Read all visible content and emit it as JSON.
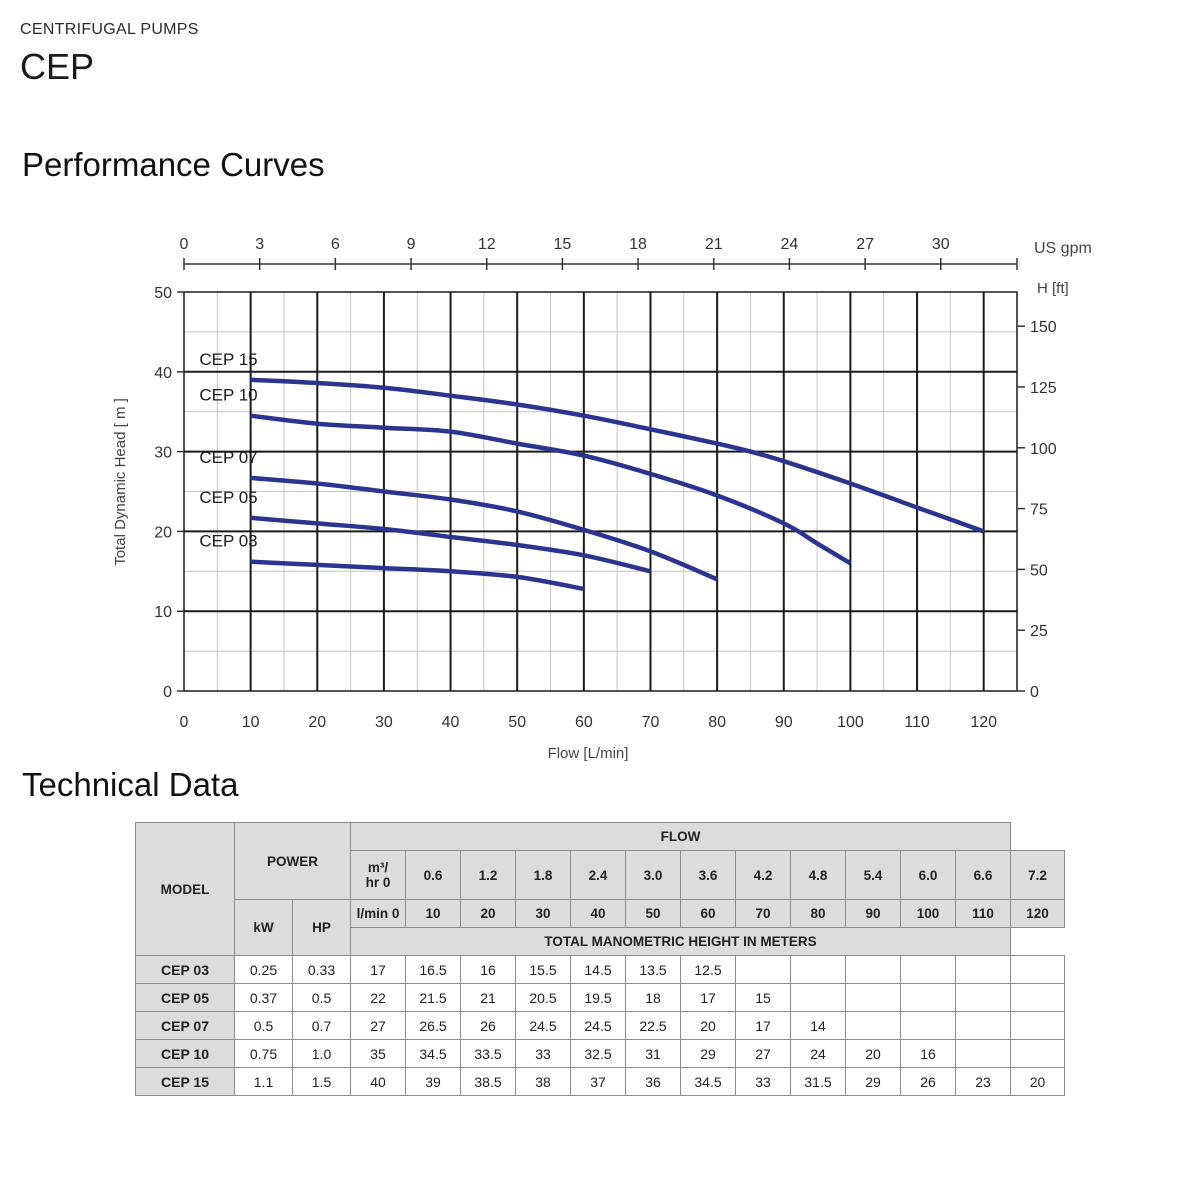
{
  "header": {
    "category": "CENTRIFUGAL PUMPS",
    "model": "CEP"
  },
  "sections": {
    "curves_title": "Performance Curves",
    "tech_title": "Technical Data"
  },
  "chart_data": {
    "type": "line",
    "xlabel": "Flow [L/min]",
    "ylabel": "Total Dynamic Head  [ m ]",
    "xlim": [
      0,
      125
    ],
    "ylim": [
      0,
      50
    ],
    "x_ticks": [
      0,
      10,
      20,
      30,
      40,
      50,
      60,
      70,
      80,
      90,
      100,
      110,
      120
    ],
    "y_ticks": [
      0,
      10,
      20,
      30,
      40,
      50
    ],
    "top_axis": {
      "label": "US gpm",
      "ticks": [
        0,
        3,
        6,
        9,
        12,
        15,
        18,
        21,
        24,
        27,
        30
      ]
    },
    "right_axis": {
      "label": "H  [ft]",
      "ticks": [
        0,
        25,
        50,
        75,
        100,
        125,
        150
      ]
    },
    "grid": true,
    "line_color": "#2b3590",
    "series": [
      {
        "name": "CEP 15",
        "x": [
          10,
          20,
          30,
          40,
          50,
          60,
          70,
          80,
          85,
          90,
          100,
          110,
          120
        ],
        "y": [
          39,
          38.6,
          38,
          37,
          35.9,
          34.5,
          32.8,
          31,
          30,
          28.8,
          26,
          23,
          20
        ]
      },
      {
        "name": "CEP 10",
        "x": [
          10,
          20,
          30,
          40,
          50,
          60,
          70,
          80,
          90,
          95,
          100
        ],
        "y": [
          34.5,
          33.5,
          33,
          32.5,
          31,
          29.5,
          27.2,
          24.5,
          21,
          18.5,
          16
        ]
      },
      {
        "name": "CEP 07",
        "x": [
          10,
          20,
          30,
          40,
          50,
          60,
          70,
          80
        ],
        "y": [
          26.7,
          26,
          25,
          24,
          22.5,
          20.2,
          17.5,
          14
        ]
      },
      {
        "name": "CEP 05",
        "x": [
          10,
          20,
          30,
          40,
          50,
          60,
          70
        ],
        "y": [
          21.7,
          21,
          20.3,
          19.3,
          18.3,
          17,
          15
        ]
      },
      {
        "name": "CEP 03",
        "x": [
          10,
          20,
          30,
          40,
          50,
          60
        ],
        "y": [
          16.2,
          15.8,
          15.4,
          15,
          14.3,
          12.8
        ]
      }
    ]
  },
  "table": {
    "model_header": "MODEL",
    "power_header": "POWER",
    "flow_header": "FLOW",
    "kw_header": "kW",
    "hp_header": "HP",
    "m3_line1": "m³/",
    "m3_line2": "hr  0",
    "lmin_label": "l/min  0",
    "m3_values": [
      "0.6",
      "1.2",
      "1.8",
      "2.4",
      "3.0",
      "3.6",
      "4.2",
      "4.8",
      "5.4",
      "6.0",
      "6.6",
      "7.2"
    ],
    "lmin_values": [
      "10",
      "20",
      "30",
      "40",
      "50",
      "60",
      "70",
      "80",
      "90",
      "100",
      "110",
      "120"
    ],
    "tmh_header": "TOTAL MANOMETRIC HEIGHT IN METERS",
    "rows": [
      {
        "model": "CEP 03",
        "kw": "0.25",
        "hp": "0.33",
        "values": [
          "17",
          "16.5",
          "16",
          "15.5",
          "14.5",
          "13.5",
          "12.5",
          "",
          "",
          "",
          "",
          "",
          ""
        ]
      },
      {
        "model": "CEP 05",
        "kw": "0.37",
        "hp": "0.5",
        "values": [
          "22",
          "21.5",
          "21",
          "20.5",
          "19.5",
          "18",
          "17",
          "15",
          "",
          "",
          "",
          "",
          ""
        ]
      },
      {
        "model": "CEP 07",
        "kw": "0.5",
        "hp": "0.7",
        "values": [
          "27",
          "26.5",
          "26",
          "24.5",
          "24.5",
          "22.5",
          "20",
          "17",
          "14",
          "",
          "",
          "",
          ""
        ]
      },
      {
        "model": "CEP 10",
        "kw": "0.75",
        "hp": "1.0",
        "values": [
          "35",
          "34.5",
          "33.5",
          "33",
          "32.5",
          "31",
          "29",
          "27",
          "24",
          "20",
          "16",
          "",
          ""
        ]
      },
      {
        "model": "CEP 15",
        "kw": "1.1",
        "hp": "1.5",
        "values": [
          "40",
          "39",
          "38.5",
          "38",
          "37",
          "36",
          "34.5",
          "33",
          "31.5",
          "29",
          "26",
          "23",
          "20"
        ]
      }
    ]
  }
}
